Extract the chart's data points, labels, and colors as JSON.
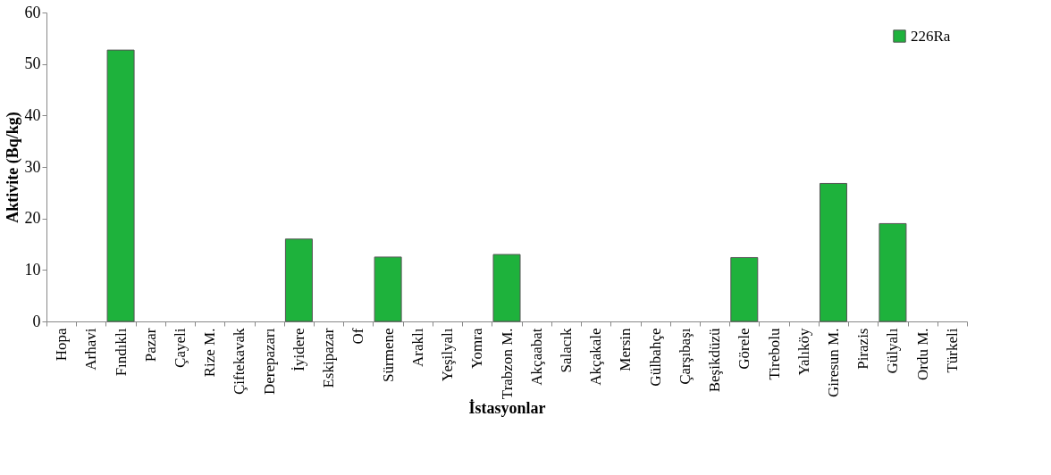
{
  "chart_data": {
    "type": "bar",
    "xlabel": "İstasyonlar",
    "ylabel": "Aktivite (Bq/kg)",
    "categories": [
      "Hopa",
      "Arhavi",
      "Fındıklı",
      "Pazar",
      "Çayeli",
      "Rize M.",
      "Çiftekavak",
      "Derepazarı",
      "İyidere",
      "Eskipazar",
      "Of",
      "Sürmene",
      "Araklı",
      "Yeşilyalı",
      "Yomra",
      "Trabzon M.",
      "Akçaabat",
      "Salacık",
      "Akçakale",
      "Mersin",
      "Gülbahçe",
      "Çarşıbaşı",
      "Beşikdüzü",
      "Görele",
      "Tirebolu",
      "Yalıköy",
      "Giresun M.",
      "Pirazis",
      "Gülyalı",
      "Ordu M.",
      "Türkeli"
    ],
    "series": [
      {
        "name": "226Ra",
        "color": "#1eb23c",
        "values": [
          null,
          null,
          52.7,
          null,
          null,
          null,
          null,
          null,
          16.0,
          null,
          null,
          12.5,
          null,
          null,
          null,
          13.0,
          null,
          null,
          null,
          null,
          null,
          null,
          null,
          12.4,
          null,
          null,
          26.8,
          null,
          19.0,
          null,
          null
        ]
      }
    ],
    "ylim": [
      0,
      60
    ],
    "yticks": [
      0,
      10,
      20,
      30,
      40,
      50,
      60
    ],
    "grid": false,
    "legend": "top right"
  }
}
